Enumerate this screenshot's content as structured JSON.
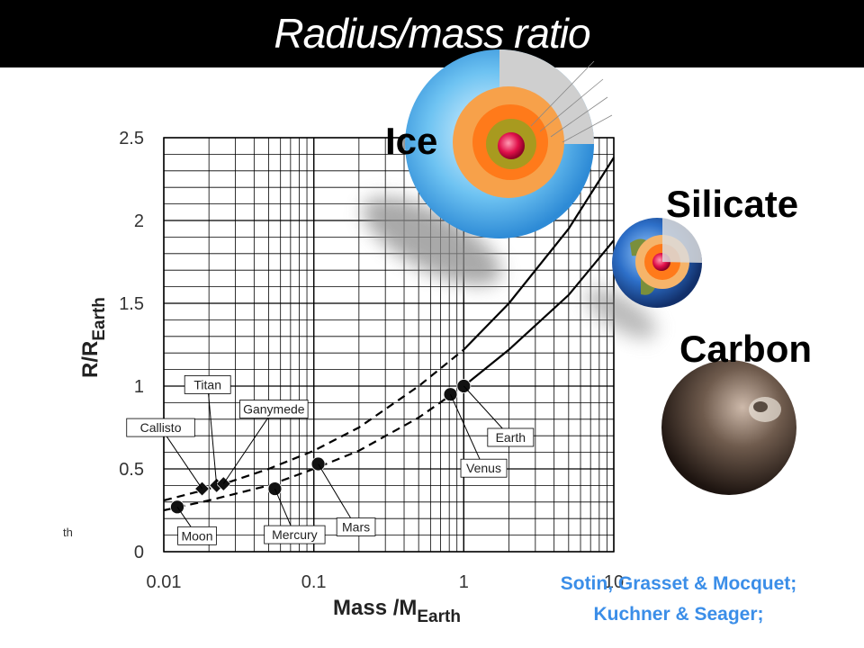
{
  "title": "Radius/mass ratio",
  "planet_types": [
    "Ice",
    "Silicate",
    "Carbon"
  ],
  "credit": [
    "Sotin, Grasset & Mocquet;",
    "Kuchner & Seager;"
  ],
  "stray_text": "th",
  "colors": {
    "title_bg": "#000000",
    "title_fg": "#ffffff",
    "credit": "#3b8ee8",
    "grid": "#000000",
    "marker": "#111111"
  },
  "chart_data": {
    "type": "scatter",
    "x_scale": "log",
    "xlim": [
      0.01,
      10
    ],
    "ylim": [
      0,
      2.5
    ],
    "xlabel": "Mass /M",
    "xlabel_sub": "Earth",
    "ylabel": "R/R",
    "ylabel_sub": "Earth",
    "x_ticks": [
      {
        "value": 0.01,
        "label": "0.01"
      },
      {
        "value": 0.1,
        "label": "0.1"
      },
      {
        "value": 1,
        "label": "1"
      },
      {
        "value": 10,
        "label": "10"
      }
    ],
    "y_ticks": [
      {
        "value": 0,
        "label": "0"
      },
      {
        "value": 0.5,
        "label": "0.5"
      },
      {
        "value": 1,
        "label": "1"
      },
      {
        "value": 1.5,
        "label": "1.5"
      },
      {
        "value": 2,
        "label": "2"
      },
      {
        "value": 2.5,
        "label": "2.5"
      }
    ],
    "grid": true,
    "points": [
      {
        "name": "Moon",
        "x": 0.0123,
        "y": 0.27,
        "marker": "circle"
      },
      {
        "name": "Mercury",
        "x": 0.055,
        "y": 0.38,
        "marker": "circle"
      },
      {
        "name": "Mars",
        "x": 0.107,
        "y": 0.53,
        "marker": "circle"
      },
      {
        "name": "Venus",
        "x": 0.815,
        "y": 0.95,
        "marker": "circle"
      },
      {
        "name": "Earth",
        "x": 1.0,
        "y": 1.0,
        "marker": "circle"
      },
      {
        "name": "Callisto",
        "x": 0.018,
        "y": 0.38,
        "marker": "diamond"
      },
      {
        "name": "Titan",
        "x": 0.0225,
        "y": 0.4,
        "marker": "diamond"
      },
      {
        "name": "Ganymede",
        "x": 0.025,
        "y": 0.41,
        "marker": "diamond"
      }
    ],
    "curves": [
      {
        "style": "dashed-solid",
        "break_x": 1.0,
        "x": [
          0.01,
          0.02,
          0.05,
          0.1,
          0.2,
          0.5,
          1,
          2,
          5,
          10
        ],
        "y": [
          0.31,
          0.38,
          0.5,
          0.61,
          0.75,
          1.0,
          1.22,
          1.5,
          1.95,
          2.38
        ]
      },
      {
        "style": "dashed-solid",
        "break_x": 1.0,
        "x": [
          0.01,
          0.02,
          0.05,
          0.1,
          0.2,
          0.5,
          1,
          2,
          5,
          10
        ],
        "y": [
          0.25,
          0.31,
          0.4,
          0.5,
          0.61,
          0.81,
          1.0,
          1.22,
          1.55,
          1.88
        ]
      }
    ]
  }
}
